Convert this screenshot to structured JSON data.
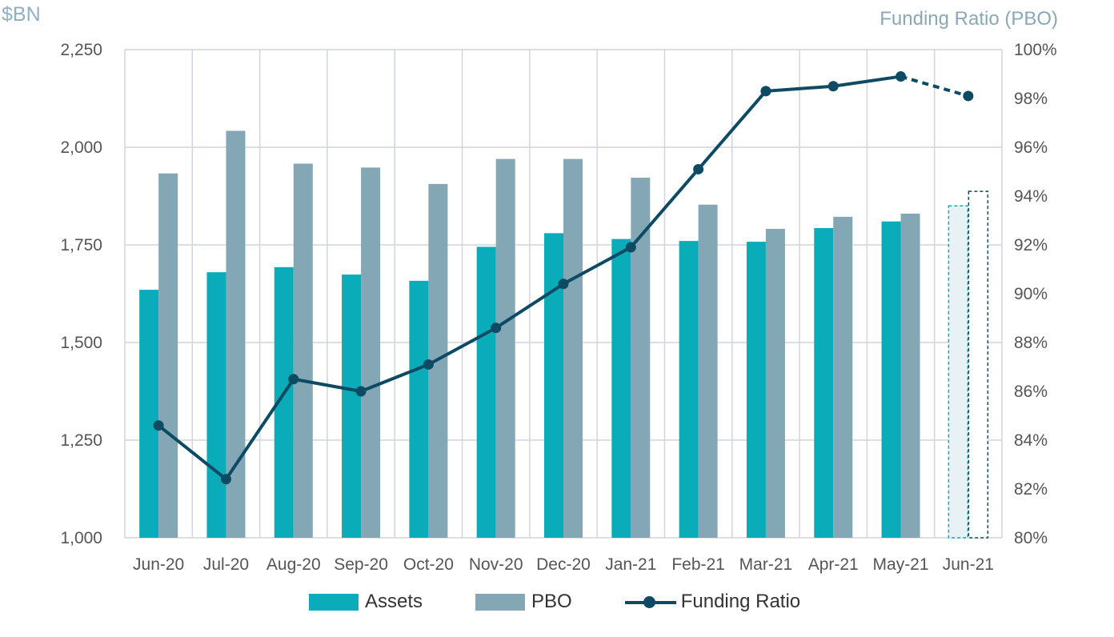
{
  "left_axis_title": "$BN",
  "right_axis_title": "Funding Ratio (PBO)",
  "legend": {
    "assets": "Assets",
    "pbo": "PBO",
    "funding_ratio": "Funding Ratio"
  },
  "colors": {
    "assets": "#0aacb9",
    "pbo": "#84a7b5",
    "funding_ratio": "#0d4a63",
    "grid": "#d0d6de",
    "projected_fill": "#e8f2f4"
  },
  "chart_data": {
    "type": "bar",
    "categories": [
      "Jun-20",
      "Jul-20",
      "Aug-20",
      "Sep-20",
      "Oct-20",
      "Nov-20",
      "Dec-20",
      "Jan-21",
      "Feb-21",
      "Mar-21",
      "Apr-21",
      "May-21",
      "Jun-21"
    ],
    "series": [
      {
        "name": "Assets",
        "type": "bar",
        "axis": "left",
        "values": [
          1635,
          1680,
          1693,
          1674,
          1658,
          1745,
          1780,
          1765,
          1760,
          1758,
          1793,
          1810,
          1850
        ]
      },
      {
        "name": "PBO",
        "type": "bar",
        "axis": "left",
        "values": [
          1933,
          2042,
          1958,
          1948,
          1906,
          1970,
          1970,
          1922,
          1853,
          1791,
          1822,
          1830,
          1887
        ]
      },
      {
        "name": "Funding Ratio",
        "type": "line",
        "axis": "right",
        "values": [
          84.6,
          82.4,
          86.5,
          86.0,
          87.1,
          88.6,
          90.4,
          91.9,
          95.1,
          98.3,
          98.5,
          98.9,
          98.1
        ]
      }
    ],
    "projected_categories": [
      "Jun-21"
    ],
    "y_left": {
      "min": 1000,
      "max": 2250,
      "ticks": [
        1000,
        1250,
        1500,
        1750,
        2000,
        2250
      ],
      "tick_labels": [
        "1,000",
        "1,250",
        "1,500",
        "1,750",
        "2,000",
        "2,250"
      ]
    },
    "y_right": {
      "min": 80,
      "max": 100,
      "ticks": [
        80,
        82,
        84,
        86,
        88,
        90,
        92,
        94,
        96,
        98,
        100
      ],
      "tick_labels": [
        "80%",
        "82%",
        "84%",
        "86%",
        "88%",
        "90%",
        "92%",
        "94%",
        "96%",
        "98%",
        "100%"
      ]
    },
    "grid": true,
    "legend_position": "bottom"
  }
}
